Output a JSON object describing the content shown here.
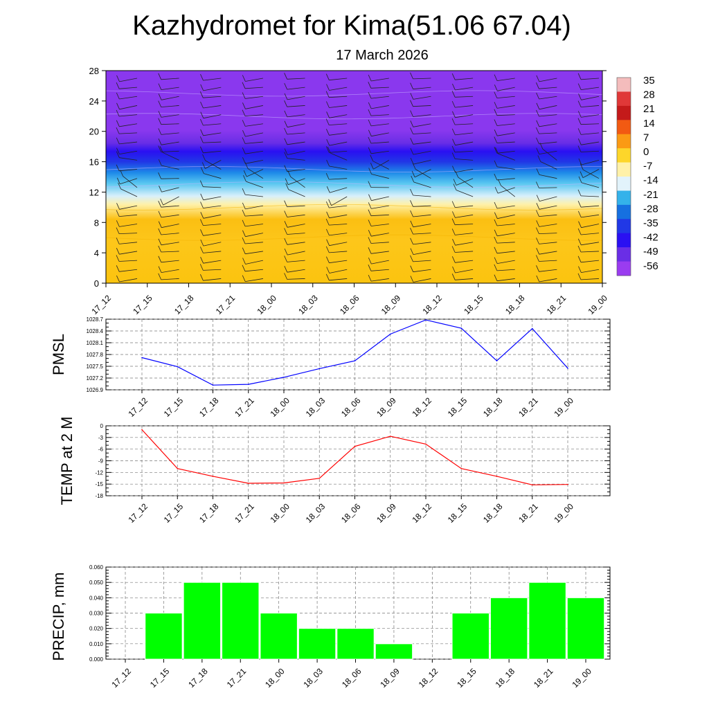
{
  "title": "Kazhydromet for Kima(51.06 67.04)",
  "subtitle": "17 March 2026",
  "times": [
    "17_12",
    "17_15",
    "17_18",
    "17_21",
    "18_00",
    "18_03",
    "18_06",
    "18_09",
    "18_12",
    "18_15",
    "18_18",
    "18_21",
    "19_00"
  ],
  "chart_data": [
    {
      "type": "heatmap",
      "name": "temperature-height-section",
      "xlabel": "",
      "ylabel": "",
      "y_ticks": [
        0,
        4,
        8,
        12,
        16,
        20,
        24,
        28
      ],
      "ylim": [
        0,
        28
      ],
      "colorbar_labels": [
        "35",
        "28",
        "21",
        "14",
        "7",
        "0",
        "-7",
        "-14",
        "-21",
        "-28",
        "-35",
        "-42",
        "-49",
        "-56"
      ],
      "colorbar_colors": [
        "#f4bcbc",
        "#e03838",
        "#c41a1a",
        "#f25a12",
        "#fb9a14",
        "#fdd62a",
        "#fff1a8",
        "#e2f3fb",
        "#34b2ea",
        "#1670e0",
        "#2138e6",
        "#2a10f2",
        "#6a2ee6",
        "#9a3cf0"
      ],
      "description_levels": [
        {
          "level": 0,
          "temp": -7
        },
        {
          "level": 8,
          "temp": -8
        },
        {
          "level": 11,
          "temp": -14
        },
        {
          "level": 14,
          "temp": -28
        },
        {
          "level": 17,
          "temp": -49
        },
        {
          "level": 28,
          "temp": -56
        }
      ]
    },
    {
      "type": "line",
      "name": "pmsl",
      "ylabel": "PMSL",
      "y_ticks": [
        "1026.9",
        "1027.2",
        "1027.5",
        "1027.8",
        "1028.1",
        "1028.4",
        "1028.7"
      ],
      "ylim": [
        1026.9,
        1028.7
      ],
      "values": [
        1027.72,
        1027.49,
        1027.02,
        1027.04,
        1027.22,
        1027.44,
        1027.64,
        1028.32,
        1028.68,
        1028.47,
        1027.64,
        1028.46,
        1027.45
      ],
      "color": "#0000ff"
    },
    {
      "type": "line",
      "name": "temp-2m",
      "ylabel": "TEMP at 2 M",
      "y_ticks": [
        "0",
        "-3",
        "-6",
        "-9",
        "-12",
        "-15",
        "-18"
      ],
      "ylim": [
        -18,
        0
      ],
      "values": [
        -1,
        -11,
        -13,
        -14.8,
        -14.7,
        -13.5,
        -5.3,
        -2.7,
        -4.7,
        -11,
        -13,
        -15.2,
        -15.1
      ],
      "color": "#ff0000"
    },
    {
      "type": "bar",
      "name": "precip",
      "ylabel": "PRECIP, mm",
      "y_ticks": [
        "0.000",
        "0.010",
        "0.020",
        "0.030",
        "0.040",
        "0.050",
        "0.060"
      ],
      "ylim": [
        0,
        0.06
      ],
      "values": [
        0,
        0.03,
        0.05,
        0.05,
        0.03,
        0.02,
        0.02,
        0.01,
        0,
        0.03,
        0.04,
        0.05,
        0.04
      ],
      "color": "#00ff00"
    }
  ]
}
